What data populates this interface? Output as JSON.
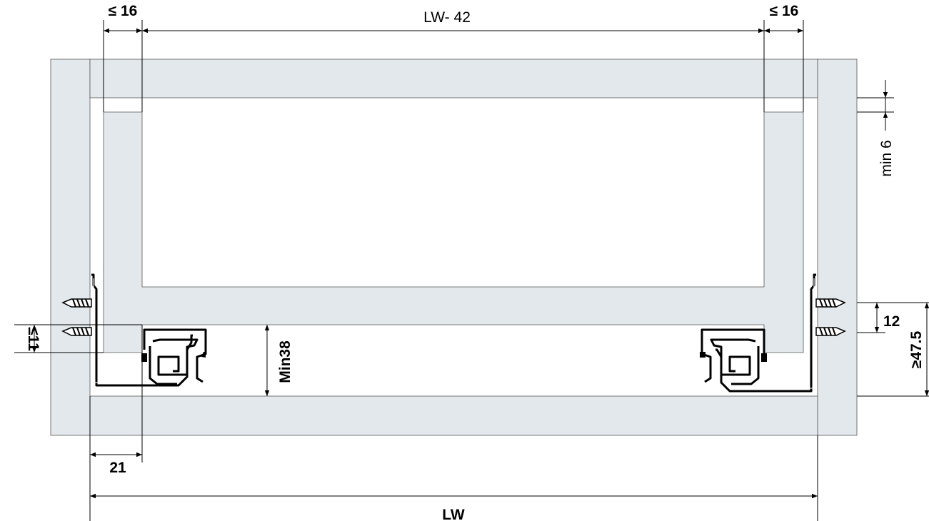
{
  "colors": {
    "panel": "#e2e8eb",
    "line": "#000000"
  },
  "dimensions": {
    "top_left_side": "≤ 16",
    "top_inner_width": "LW- 42",
    "top_right_side": "≤ 16",
    "top_gap": "min 6",
    "screw_spacing": "12",
    "mount_height": "≥47.5",
    "side_offset": "≤11",
    "bottom_clearance": "Min38",
    "rail_offset": "21",
    "inner_width": "LW"
  }
}
